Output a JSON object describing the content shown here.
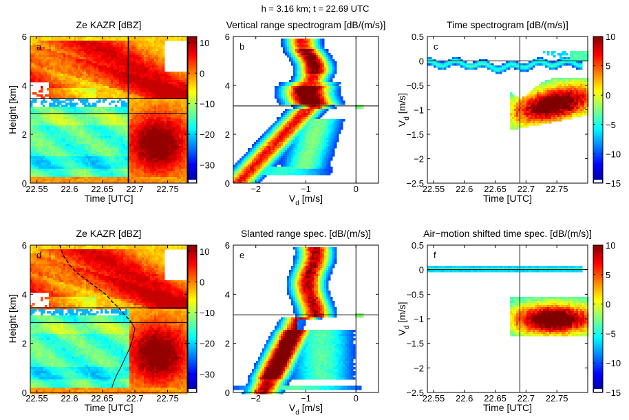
{
  "figure": {
    "suptitle": "h = 3.16 km; t = 22.69 UTC"
  },
  "colors": {
    "jet": [
      "#00008f",
      "#0000ff",
      "#0080ff",
      "#00ffff",
      "#80ff80",
      "#ffff00",
      "#ff8000",
      "#ff0000",
      "#800000"
    ]
  },
  "chart_data": [
    {
      "id": "a",
      "type": "heatmap",
      "panel_label": "a",
      "title": "Ze KAZR [dBZ]",
      "xlabel": "Time [UTC]",
      "ylabel": "Height [km]",
      "xlim": [
        22.54,
        22.78
      ],
      "ylim": [
        0,
        6
      ],
      "xticks": [
        22.55,
        22.6,
        22.65,
        22.7,
        22.75
      ],
      "xticklabels": [
        "22.55",
        "22.6",
        "22.65",
        "22.7",
        "22.75"
      ],
      "yticks": [
        0,
        2,
        4,
        6
      ],
      "yticklabels": [
        "0",
        "2",
        "4",
        "6"
      ],
      "colorbar": {
        "ticks": [
          10,
          0,
          -10,
          -20,
          -30
        ],
        "ticklabels": [
          "10",
          "0",
          "−10",
          "−20",
          "−30"
        ],
        "clim": [
          -36,
          12
        ]
      },
      "hlines": [
        3.45,
        2.85
      ],
      "vlines": [
        22.69
      ]
    },
    {
      "id": "b",
      "type": "heatmap",
      "panel_label": "b",
      "title": "Vertical range spectrogram [dB/(m/s)]",
      "xlabel": "V",
      "xlabel_sub": "d",
      "xlabel_unit": " [m/s]",
      "xlim": [
        -2.45,
        0.45
      ],
      "ylim": [
        0,
        6
      ],
      "xticks": [
        -2,
        -1,
        0
      ],
      "xticklabels": [
        "−2",
        "−1",
        "0"
      ],
      "yticks": [
        0,
        2,
        4,
        6
      ],
      "yticklabels": [
        "0",
        "2",
        "4",
        "6"
      ],
      "hlines": [
        3.16
      ],
      "vlines": [
        0
      ]
    },
    {
      "id": "c",
      "type": "heatmap",
      "panel_label": "c",
      "title": "Time spectrogram [dB/(m/s)]",
      "xlabel": "Time [UTC]",
      "ylabel": "V",
      "ylabel_sub": "d",
      "ylabel_unit": " [m/s]",
      "xlim": [
        22.54,
        22.8
      ],
      "ylim": [
        -2.5,
        0.5
      ],
      "xticks": [
        22.55,
        22.6,
        22.65,
        22.7,
        22.75
      ],
      "xticklabels": [
        "22.55",
        "22.6",
        "22.65",
        "22.7",
        "22.75"
      ],
      "yticks": [
        0.5,
        0,
        -0.5,
        -1,
        -1.5,
        -2,
        -2.5
      ],
      "yticklabels": [
        "0.5",
        "0",
        "−0.5",
        "−1",
        "−1.5",
        "−2",
        "−2.5"
      ],
      "colorbar": {
        "ticks": [
          10,
          5,
          0,
          -5,
          -10,
          -15
        ],
        "ticklabels": [
          "10",
          "5",
          "0",
          "−5",
          "−10",
          "−15"
        ],
        "clim": [
          -15,
          10
        ]
      },
      "hlines": [
        0
      ],
      "vlines": [
        22.69
      ]
    },
    {
      "id": "d",
      "type": "heatmap",
      "panel_label": "d",
      "title": "Ze KAZR [dBZ]",
      "xlabel": "Time [UTC]",
      "ylabel": "Height [km]",
      "xlim": [
        22.54,
        22.78
      ],
      "ylim": [
        0,
        6
      ],
      "xticks": [
        22.55,
        22.6,
        22.65,
        22.7,
        22.75
      ],
      "xticklabels": [
        "22.55",
        "22.6",
        "22.65",
        "22.7",
        "22.75"
      ],
      "yticks": [
        0,
        2,
        4,
        6
      ],
      "yticklabels": [
        "0",
        "2",
        "4",
        "6"
      ],
      "colorbar": {
        "ticks": [
          10,
          0,
          -10,
          -20,
          -30
        ],
        "ticklabels": [
          "10",
          "0",
          "−10",
          "−20",
          "−30"
        ],
        "clim": [
          -36,
          12
        ]
      },
      "hlines": [
        3.45,
        2.85
      ],
      "fallstreak": {
        "x": [
          22.585,
          22.59,
          22.6,
          22.61,
          22.625,
          22.64,
          22.655,
          22.665,
          22.675,
          22.683,
          22.69,
          22.695,
          22.7,
          22.697,
          22.692,
          22.685,
          22.678,
          22.672,
          22.668,
          22.665
        ],
        "y": [
          6.0,
          5.6,
          5.2,
          4.9,
          4.6,
          4.3,
          4.0,
          3.7,
          3.45,
          3.2,
          3.0,
          2.85,
          2.6,
          2.2,
          1.8,
          1.4,
          1.0,
          0.7,
          0.45,
          0.2
        ]
      }
    },
    {
      "id": "e",
      "type": "heatmap",
      "panel_label": "e",
      "title": "Slanted range spec. [dB/(m/s)]",
      "xlabel": "V",
      "xlabel_sub": "d",
      "xlabel_unit": " [m/s]",
      "xlim": [
        -2.45,
        0.45
      ],
      "ylim": [
        0,
        6
      ],
      "xticks": [
        -2,
        -1,
        0
      ],
      "xticklabels": [
        "−2",
        "−1",
        "0"
      ],
      "yticks": [
        0,
        2,
        4,
        6
      ],
      "yticklabels": [
        "0",
        "2",
        "4",
        "6"
      ],
      "hlines": [
        3.16
      ],
      "vlines": [
        0
      ]
    },
    {
      "id": "f",
      "type": "heatmap",
      "panel_label": "f",
      "title": "Air−motion shifted time spec. [dB/(m/s)]",
      "xlabel": "Time [UTC]",
      "ylabel": "V",
      "ylabel_sub": "d",
      "ylabel_unit": " [m/s]",
      "xlim": [
        22.54,
        22.8
      ],
      "ylim": [
        -2.5,
        0.5
      ],
      "xticks": [
        22.55,
        22.6,
        22.65,
        22.7,
        22.75
      ],
      "xticklabels": [
        "22.55",
        "22.6",
        "22.65",
        "22.7",
        "22.75"
      ],
      "yticks": [
        0.5,
        0,
        -0.5,
        -1,
        -1.5,
        -2,
        -2.5
      ],
      "yticklabels": [
        "0.5",
        "0",
        "−0.5",
        "−1",
        "−1.5",
        "−2",
        "−2.5"
      ],
      "colorbar": {
        "ticks": [
          10,
          5,
          0,
          -5,
          -10,
          -15
        ],
        "ticklabels": [
          "10",
          "5",
          "0",
          "−5",
          "−10",
          "−15"
        ],
        "clim": [
          -15,
          10
        ]
      },
      "hlines": [
        0
      ],
      "vlines": [
        22.69
      ]
    }
  ]
}
